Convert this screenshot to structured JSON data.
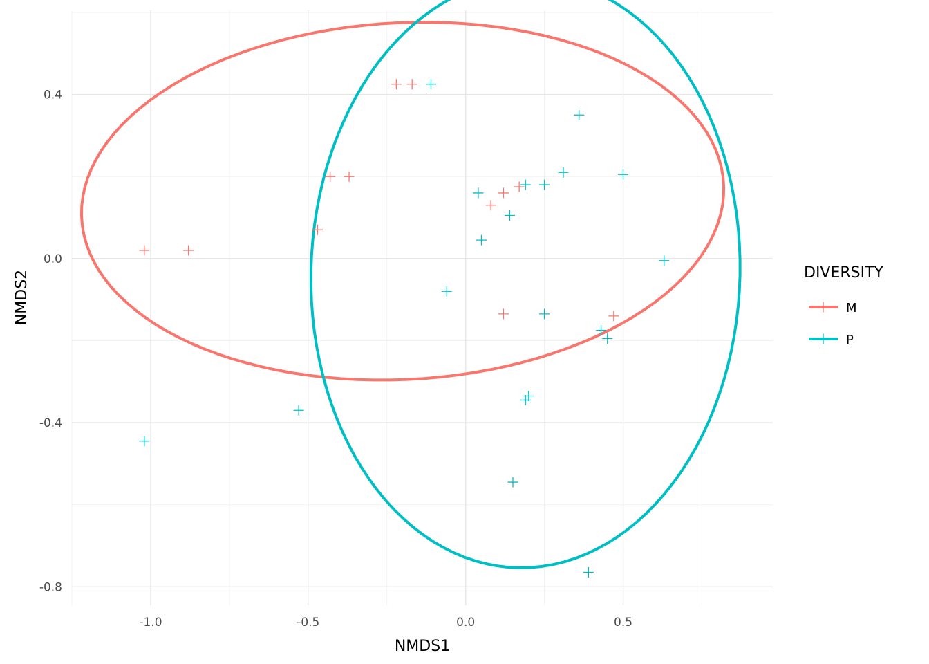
{
  "chart_data": {
    "type": "scatter",
    "xlabel": "NMDS1",
    "ylabel": "NMDS2",
    "xlim": [
      -1.25,
      0.975
    ],
    "ylim": [
      -0.845,
      0.605
    ],
    "x_major_ticks": [
      -1.0,
      -0.5,
      0.0,
      0.5
    ],
    "x_tick_labels": [
      "-1.0",
      "-0.5",
      "0.0",
      "0.5"
    ],
    "x_minor_ticks": [
      -1.25,
      -0.75,
      -0.25,
      0.25,
      0.75
    ],
    "y_major_ticks": [
      -0.8,
      -0.4,
      0.0,
      0.4
    ],
    "y_tick_labels": [
      "-0.8",
      "-0.4",
      "0.0",
      "0.4"
    ],
    "y_minor_ticks": [
      -0.6,
      -0.2,
      0.2,
      0.6
    ],
    "grid": true,
    "point_shape": "plus",
    "ellipses": true,
    "legend": {
      "title": "DIVERSITY",
      "position": "right",
      "entries": [
        "M",
        "P"
      ]
    },
    "series": [
      {
        "name": "M",
        "color": "#F8766D",
        "points": [
          {
            "x": -1.02,
            "y": 0.02
          },
          {
            "x": -0.88,
            "y": 0.02
          },
          {
            "x": -0.43,
            "y": 0.2
          },
          {
            "x": -0.37,
            "y": 0.2
          },
          {
            "x": -0.47,
            "y": 0.07
          },
          {
            "x": -0.22,
            "y": 0.425
          },
          {
            "x": -0.17,
            "y": 0.425
          },
          {
            "x": 0.08,
            "y": 0.13
          },
          {
            "x": 0.12,
            "y": 0.16
          },
          {
            "x": 0.17,
            "y": 0.175
          },
          {
            "x": 0.12,
            "y": -0.135
          },
          {
            "x": 0.47,
            "y": -0.14
          }
        ],
        "ellipse": {
          "cx": -0.2,
          "cy": 0.14,
          "rx": 1.02,
          "ry": 0.435,
          "angle_deg": 2
        }
      },
      {
        "name": "P",
        "color": "#00BFC4",
        "points": [
          {
            "x": -0.11,
            "y": 0.425
          },
          {
            "x": 0.04,
            "y": 0.16
          },
          {
            "x": 0.05,
            "y": 0.045
          },
          {
            "x": 0.14,
            "y": 0.105
          },
          {
            "x": 0.19,
            "y": 0.18
          },
          {
            "x": 0.25,
            "y": 0.18
          },
          {
            "x": 0.31,
            "y": 0.21
          },
          {
            "x": 0.36,
            "y": 0.35
          },
          {
            "x": 0.5,
            "y": 0.205
          },
          {
            "x": 0.63,
            "y": -0.005
          },
          {
            "x": -0.06,
            "y": -0.08
          },
          {
            "x": 0.25,
            "y": -0.135
          },
          {
            "x": 0.43,
            "y": -0.175
          },
          {
            "x": 0.45,
            "y": -0.195
          },
          {
            "x": 0.19,
            "y": -0.345
          },
          {
            "x": 0.2,
            "y": -0.335
          },
          {
            "x": -0.53,
            "y": -0.37
          },
          {
            "x": -1.02,
            "y": -0.445
          },
          {
            "x": 0.15,
            "y": -0.545
          },
          {
            "x": 0.39,
            "y": -0.765
          }
        ],
        "ellipse": {
          "cx": 0.19,
          "cy": -0.035,
          "rx": 0.68,
          "ry": 0.72,
          "angle_deg": -10
        }
      }
    ]
  }
}
